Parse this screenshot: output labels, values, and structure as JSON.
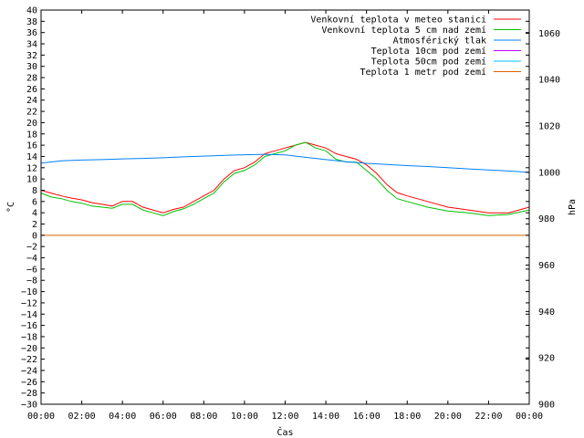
{
  "chart_data": {
    "type": "line",
    "xlabel": "Čas",
    "ylabel": "°C",
    "y2label": "hPa",
    "x_ticks": [
      "00:00",
      "02:00",
      "04:00",
      "06:00",
      "08:00",
      "10:00",
      "12:00",
      "14:00",
      "16:00",
      "18:00",
      "20:00",
      "22:00",
      "00:00"
    ],
    "x_range_hours": [
      0,
      24
    ],
    "ylim": [
      -30,
      40
    ],
    "y_step": 2,
    "y2lim": [
      900,
      1070
    ],
    "y2_ticks": [
      900,
      920,
      940,
      960,
      980,
      1000,
      1020,
      1040,
      1060
    ],
    "legend_position": "top-right",
    "series": [
      {
        "name": "Venkovní teplota v meteo stanici",
        "color": "#ff0000",
        "axis": "left",
        "x": [
          0,
          0.5,
          1,
          1.5,
          2,
          2.5,
          3,
          3.5,
          4,
          4.5,
          5,
          5.5,
          6,
          6.5,
          7,
          7.5,
          8,
          8.5,
          9,
          9.5,
          10,
          10.5,
          11,
          11.5,
          12,
          12.5,
          13,
          13.5,
          14,
          14.5,
          15,
          15.5,
          16,
          16.5,
          17,
          17.5,
          18,
          19,
          20,
          21,
          22,
          23,
          24
        ],
        "y": [
          8,
          7.5,
          7,
          6.6,
          6.3,
          5.8,
          5.5,
          5.2,
          6,
          6,
          5,
          4.5,
          4,
          4.6,
          5,
          6,
          7,
          8,
          10,
          11.5,
          12,
          13,
          14.5,
          15,
          15.5,
          16,
          16.5,
          16,
          15.5,
          14.5,
          14,
          13.5,
          12.5,
          11,
          9,
          7.6,
          7,
          6,
          5,
          4.5,
          4,
          4,
          5
        ]
      },
      {
        "name": "Venkovní teplota 5 cm nad zemí",
        "color": "#00c000",
        "axis": "left",
        "x": [
          0,
          0.5,
          1,
          1.5,
          2,
          2.5,
          3,
          3.5,
          4,
          4.5,
          5,
          5.5,
          6,
          6.5,
          7,
          7.5,
          8,
          8.5,
          9,
          9.5,
          10,
          10.5,
          11,
          11.5,
          12,
          12.5,
          13,
          13.5,
          14,
          14.5,
          15,
          15.5,
          16,
          16.5,
          17,
          17.5,
          18,
          19,
          20,
          21,
          22,
          23,
          24
        ],
        "y": [
          7.5,
          6.8,
          6.5,
          6,
          5.7,
          5.2,
          5,
          4.8,
          5.5,
          5.5,
          4.5,
          4,
          3.5,
          4.2,
          4.7,
          5.5,
          6.5,
          7.5,
          9.5,
          11,
          11.5,
          12.5,
          14,
          14.5,
          15,
          16,
          16.5,
          15.5,
          15,
          13.5,
          13,
          13,
          11.5,
          10,
          8,
          6.5,
          6,
          5,
          4.3,
          4,
          3.5,
          3.7,
          4.5
        ]
      },
      {
        "name": "Atmosférický tlak",
        "color": "#0080ff",
        "axis": "right",
        "x": [
          0,
          1,
          2,
          3,
          4,
          5,
          6,
          7,
          8,
          9,
          10,
          11,
          12,
          13,
          14,
          15,
          16,
          17,
          18,
          19,
          20,
          21,
          22,
          23,
          24
        ],
        "y": [
          1004,
          1005,
          1005.3,
          1005.5,
          1005.8,
          1006,
          1006.3,
          1006.7,
          1007,
          1007.3,
          1007.6,
          1007.8,
          1007.5,
          1006.5,
          1005.5,
          1004.6,
          1003.9,
          1003.4,
          1002.9,
          1002.5,
          1002,
          1001.5,
          1001,
          1000.6,
          1000
        ]
      },
      {
        "name": "Teplota 10cm pod zemí",
        "color": "#c000ff",
        "axis": "left",
        "x": [],
        "y": []
      },
      {
        "name": "Teplota 50cm pod zemí",
        "color": "#00c0ff",
        "axis": "left",
        "x": [],
        "y": []
      },
      {
        "name": "Teplota 1 metr pod zemí",
        "color": "#e06000",
        "axis": "left",
        "x": [
          0,
          24
        ],
        "y": [
          0,
          0
        ]
      }
    ]
  }
}
